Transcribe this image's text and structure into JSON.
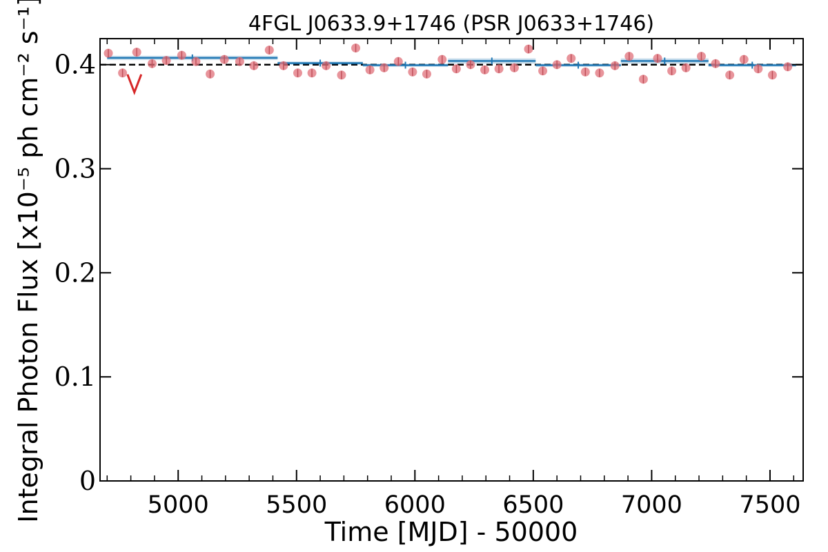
{
  "chart_data": {
    "type": "scatter",
    "title": "4FGL J0633.9+1746 (PSR J0633+1746)",
    "xlabel": "Time [MJD] - 50000",
    "ylabel": "Integral Photon Flux [x10⁻⁵ ph cm⁻² s⁻¹]",
    "xlim": [
      4670,
      7640
    ],
    "ylim": [
      0,
      0.425
    ],
    "xticks": [
      5000,
      5500,
      6000,
      6500,
      7000,
      7500
    ],
    "xtick_labels": [
      "5000",
      "5500",
      "6000",
      "6500",
      "7000",
      "7500"
    ],
    "yticks": [
      0,
      0.1,
      0.2,
      0.3,
      0.4
    ],
    "ytick_labels": [
      "0",
      "0.1",
      "0.2",
      "0.3",
      "0.4"
    ],
    "reference_line": {
      "y": 0.4,
      "style": "dashed",
      "color": "#000000"
    },
    "points": {
      "color": "#e0707a",
      "x": [
        4705,
        4765,
        4825,
        4890,
        4950,
        5015,
        5075,
        5135,
        5195,
        5260,
        5320,
        5385,
        5445,
        5505,
        5565,
        5625,
        5690,
        5750,
        5810,
        5870,
        5930,
        5990,
        6050,
        6115,
        6175,
        6235,
        6295,
        6355,
        6420,
        6480,
        6540,
        6600,
        6660,
        6720,
        6780,
        6845,
        6905,
        6965,
        7025,
        7085,
        7145,
        7210,
        7270,
        7330,
        7390,
        7450,
        7510,
        7575
      ],
      "y": [
        0.411,
        0.392,
        0.412,
        0.401,
        0.404,
        0.409,
        0.403,
        0.391,
        0.405,
        0.403,
        0.399,
        0.414,
        0.399,
        0.392,
        0.392,
        0.399,
        0.39,
        0.416,
        0.395,
        0.397,
        0.403,
        0.393,
        0.391,
        0.405,
        0.396,
        0.4,
        0.395,
        0.396,
        0.397,
        0.415,
        0.394,
        0.4,
        0.406,
        0.393,
        0.392,
        0.399,
        0.408,
        0.386,
        0.406,
        0.394,
        0.397,
        0.408,
        0.401,
        0.39,
        0.405,
        0.396,
        0.39,
        0.398
      ]
    },
    "upper_limits": {
      "color": "#d62728",
      "points": [
        {
          "x": 4815,
          "y": 0.388
        }
      ]
    },
    "blocks": {
      "color": "#1f77b4",
      "segments": [
        {
          "x0": 4700,
          "x1": 5420,
          "y": 0.4065,
          "err": 0.002
        },
        {
          "x0": 5420,
          "x1": 5780,
          "y": 0.4015,
          "err": 0.0015
        },
        {
          "x0": 5780,
          "x1": 6140,
          "y": 0.3995,
          "err": 0.0015
        },
        {
          "x0": 6140,
          "x1": 6510,
          "y": 0.4035,
          "err": 0.0025
        },
        {
          "x0": 6510,
          "x1": 6870,
          "y": 0.3995,
          "err": 0.0015
        },
        {
          "x0": 6870,
          "x1": 7240,
          "y": 0.4035,
          "err": 0.0025
        },
        {
          "x0": 7240,
          "x1": 7610,
          "y": 0.3995,
          "err": 0.0015
        }
      ]
    }
  }
}
